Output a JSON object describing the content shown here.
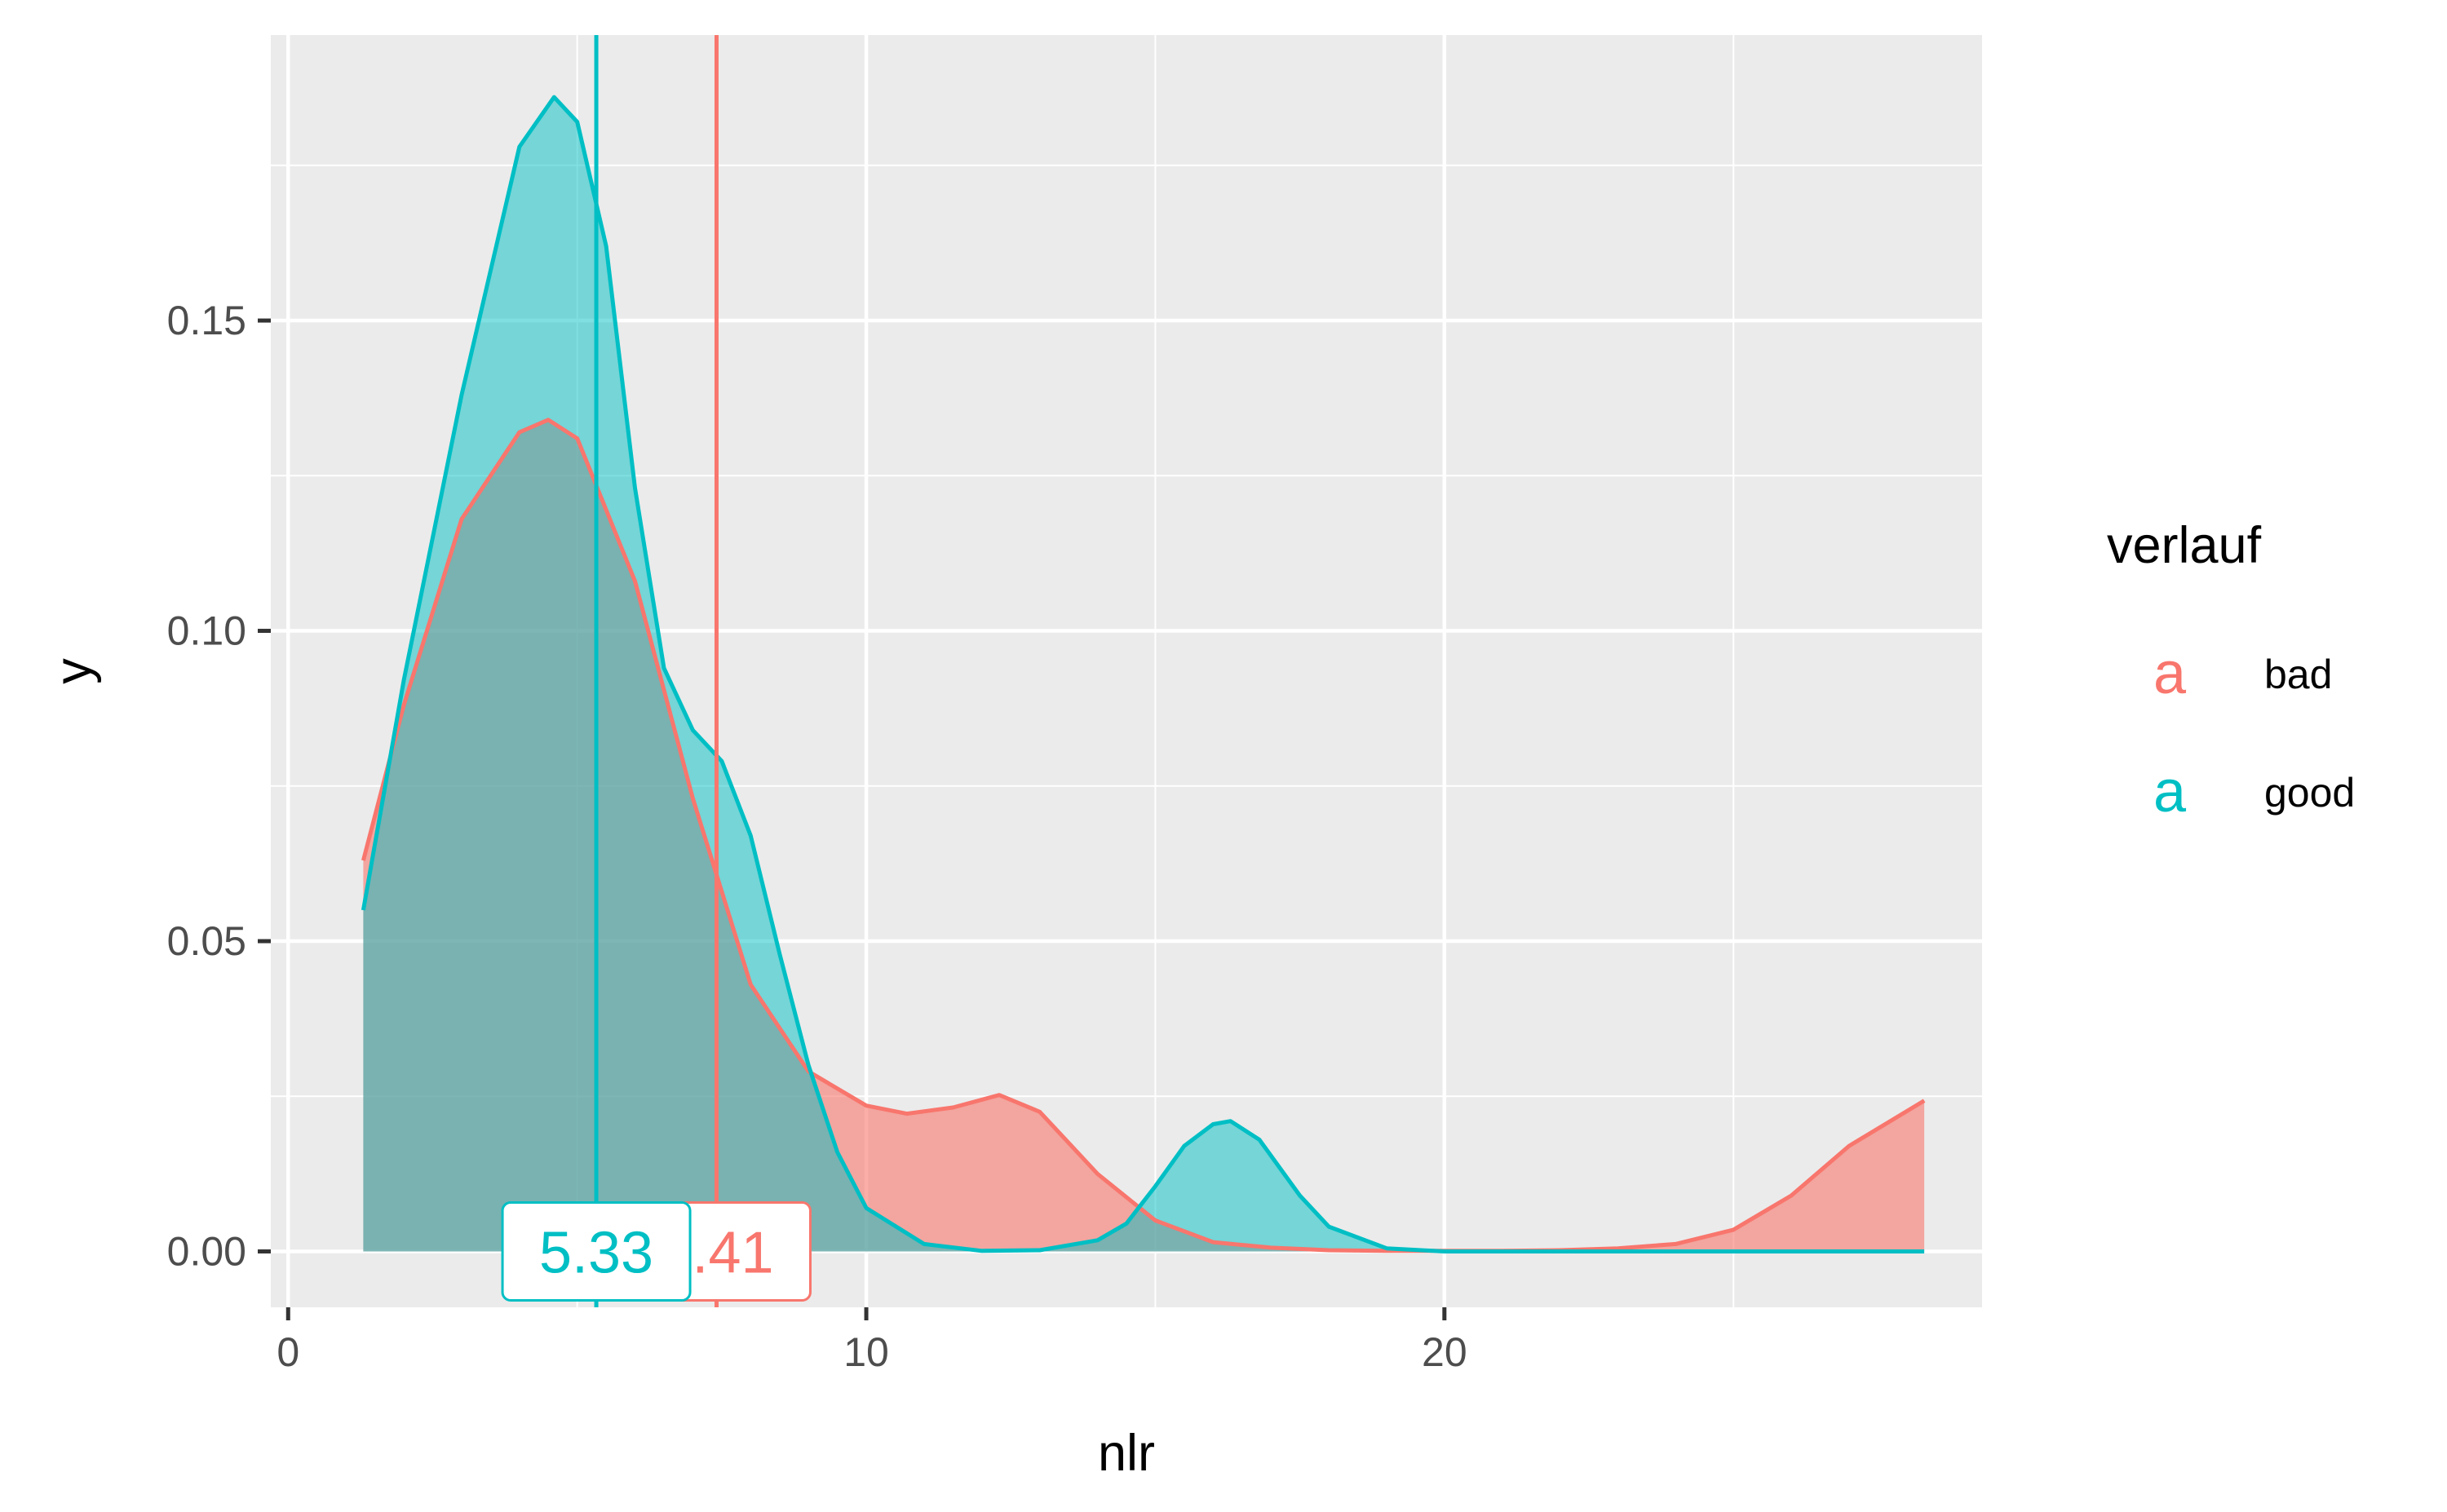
{
  "chart_data": {
    "type": "area",
    "xlabel": "nlr",
    "ylabel": "y",
    "xlim": [
      -0.3,
      29.3
    ],
    "ylim": [
      -0.009,
      0.196
    ],
    "x_ticks": [
      0,
      10,
      20
    ],
    "x_tick_labels": [
      "0",
      "10",
      "20"
    ],
    "y_ticks": [
      0,
      0.05,
      0.1,
      0.15
    ],
    "y_tick_labels": [
      "0.00",
      "0.05",
      "0.10",
      "0.15"
    ],
    "grid": true,
    "legend": {
      "title": "verlauf",
      "position": "right",
      "key_glyph": "a",
      "entries": [
        "bad",
        "good"
      ]
    },
    "series": [
      {
        "name": "bad",
        "color": "#F8766D",
        "fill_opacity": 0.6,
        "x": [
          1.3,
          2.0,
          3.0,
          4.0,
          4.5,
          5.0,
          6.0,
          7.0,
          8.0,
          9.0,
          10.0,
          10.7,
          11.5,
          12.3,
          13.0,
          14.0,
          15.0,
          16.0,
          17.0,
          18.0,
          19.0,
          20.0,
          21.0,
          22.0,
          23.0,
          24.0,
          25.0,
          26.0,
          27.0,
          28.3
        ],
        "values": [
          0.063,
          0.088,
          0.118,
          0.132,
          0.134,
          0.131,
          0.108,
          0.073,
          0.043,
          0.029,
          0.0235,
          0.0222,
          0.0232,
          0.0252,
          0.0225,
          0.0125,
          0.005,
          0.0015,
          0.0006,
          0.0002,
          0.0001,
          0.0001,
          0.0001,
          0.0002,
          0.0005,
          0.0012,
          0.0035,
          0.009,
          0.017,
          0.0243
        ]
      },
      {
        "name": "good",
        "color": "#00BFC4",
        "fill_opacity": 0.5,
        "x": [
          1.3,
          2.0,
          3.0,
          4.0,
          4.6,
          5.0,
          5.5,
          6.0,
          6.5,
          7.0,
          7.5,
          8.0,
          8.5,
          9.0,
          9.5,
          10.0,
          11.0,
          12.0,
          13.0,
          14.0,
          14.5,
          15.0,
          15.5,
          16.0,
          16.3,
          16.8,
          17.5,
          18.0,
          19.0,
          20.0,
          22.0,
          24.0,
          26.0,
          28.3
        ],
        "values": [
          0.055,
          0.092,
          0.138,
          0.178,
          0.186,
          0.182,
          0.162,
          0.123,
          0.094,
          0.084,
          0.079,
          0.067,
          0.048,
          0.03,
          0.016,
          0.007,
          0.0012,
          0.0001,
          0.0002,
          0.0018,
          0.0045,
          0.0105,
          0.017,
          0.0205,
          0.021,
          0.018,
          0.009,
          0.004,
          0.0005,
          0.0,
          0.0,
          0.0,
          0.0,
          0.0
        ]
      }
    ],
    "mean_lines": [
      {
        "series": "bad",
        "x": 7.41,
        "label": "7.41",
        "color": "#F8766D"
      },
      {
        "series": "good",
        "x": 5.33,
        "label": "5.33",
        "color": "#00BFC4"
      }
    ]
  }
}
